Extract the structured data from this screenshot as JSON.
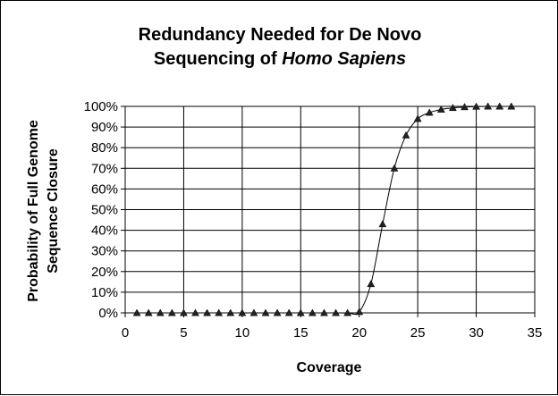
{
  "chart_data": {
    "type": "line",
    "title_line1": "Redundancy Needed for De Novo",
    "title_line2_prefix": "Sequencing of ",
    "title_line2_italic": "Homo Sapiens",
    "xlabel": "Coverage",
    "ylabel_line1": "Probability of Full Genome",
    "ylabel_line2": "Sequence Closure",
    "xlim": [
      0,
      35
    ],
    "ylim": [
      0,
      100
    ],
    "x_ticks": [
      "0",
      "5",
      "10",
      "15",
      "20",
      "25",
      "30",
      "35"
    ],
    "y_ticks": [
      "0%",
      "10%",
      "20%",
      "30%",
      "40%",
      "50%",
      "60%",
      "70%",
      "80%",
      "90%",
      "100%"
    ],
    "grid": true,
    "marker": "triangle",
    "color": "#000000",
    "series": [
      {
        "x": [
          1,
          2,
          3,
          4,
          5,
          6,
          7,
          8,
          9,
          10,
          11,
          12,
          13,
          14,
          15,
          16,
          17,
          18,
          19,
          20,
          21,
          22,
          23,
          24,
          25,
          26,
          27,
          28,
          29,
          30,
          31,
          32,
          33
        ],
        "y": [
          0,
          0,
          0,
          0,
          0,
          0,
          0,
          0,
          0,
          0,
          0,
          0,
          0,
          0,
          0,
          0,
          0,
          0,
          0,
          0.5,
          14,
          43,
          70,
          86,
          94,
          97,
          98.5,
          99.3,
          99.7,
          99.9,
          100,
          100,
          100
        ]
      }
    ]
  }
}
